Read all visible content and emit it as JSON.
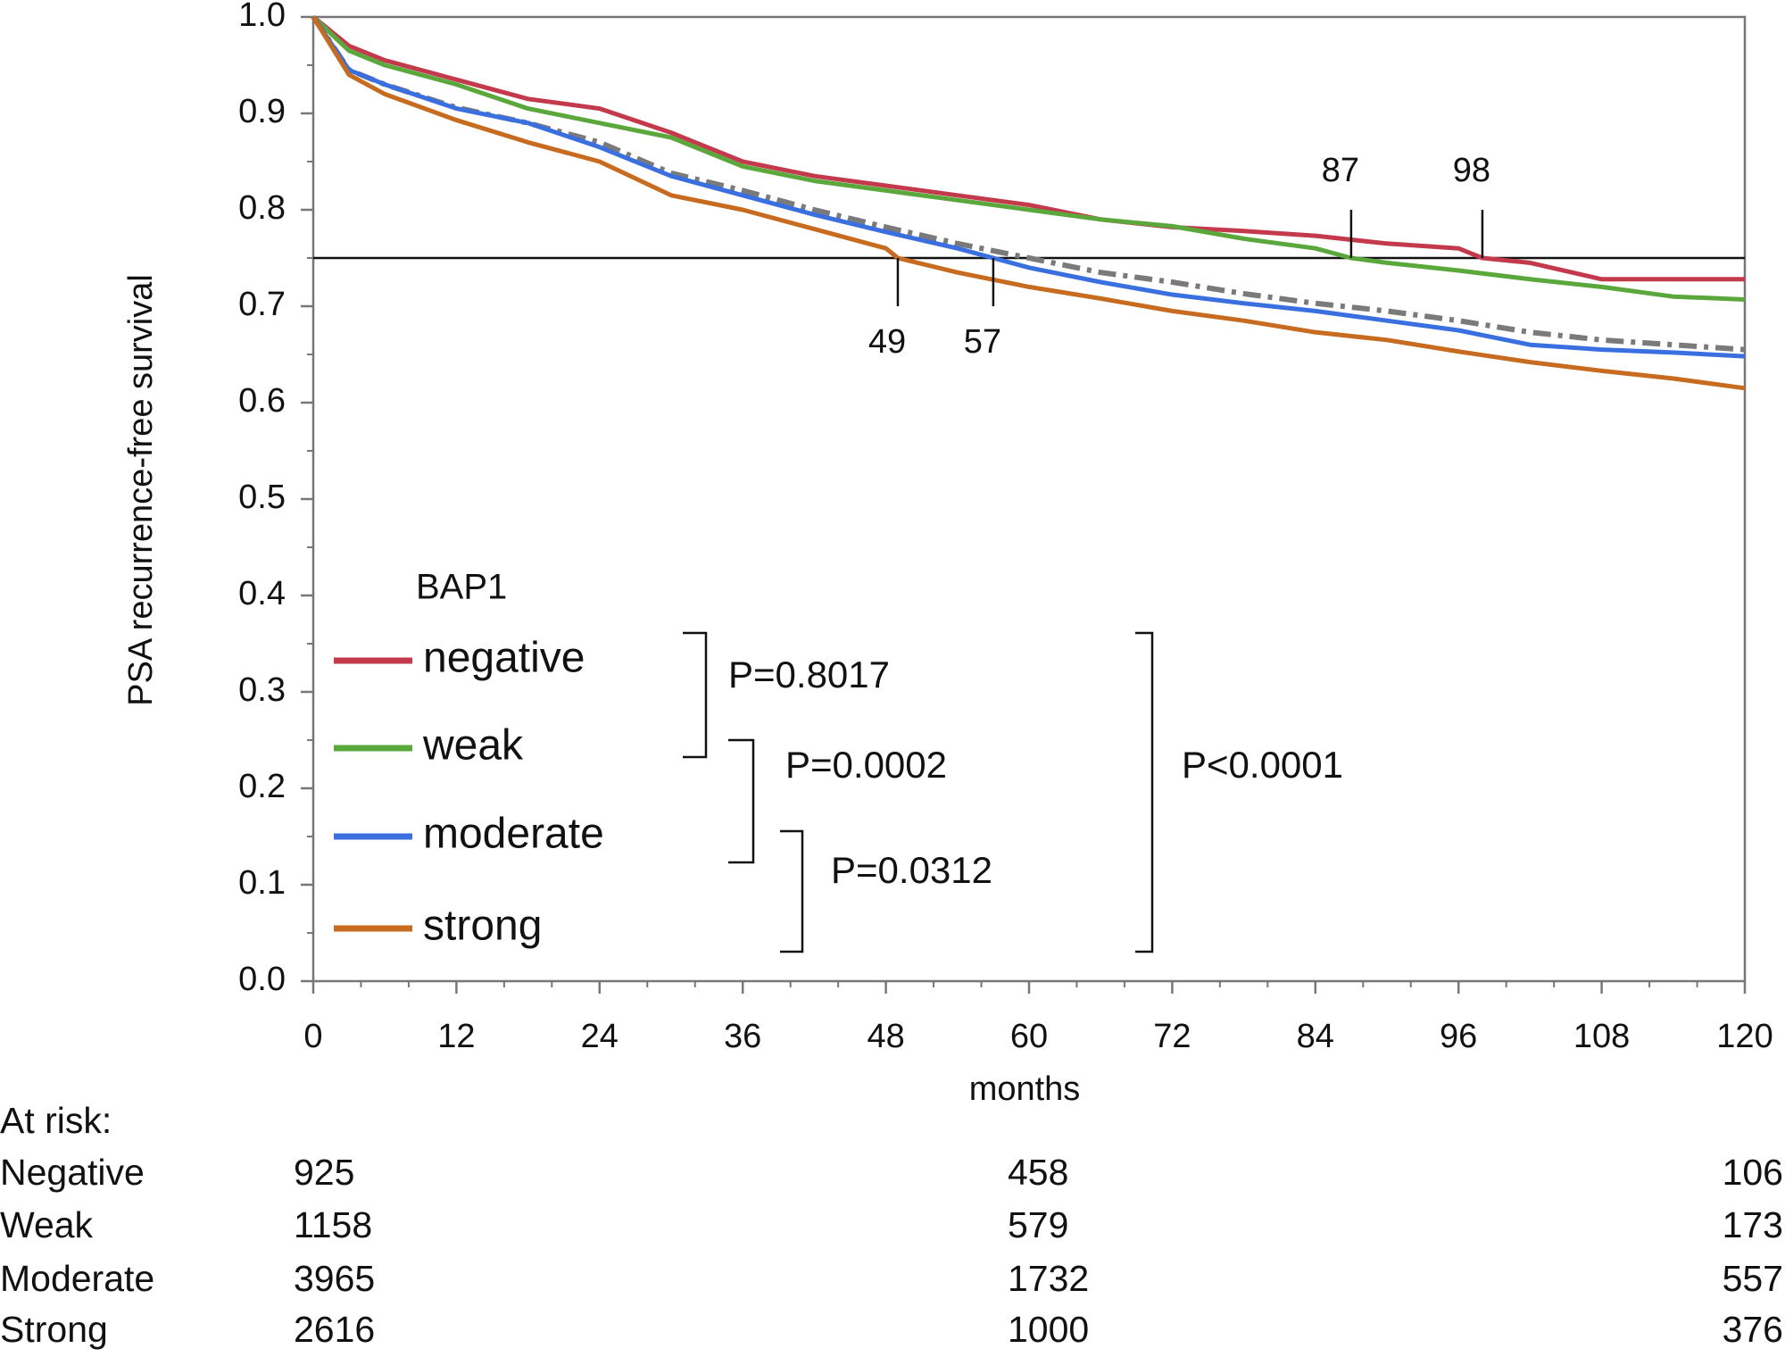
{
  "chart_data": {
    "type": "line",
    "ylabel": "PSA recurrence-free survival",
    "xlabel": "months",
    "xlim": [
      0,
      120
    ],
    "ylim": [
      0,
      1
    ],
    "xticks": [
      0,
      12,
      24,
      36,
      48,
      60,
      72,
      84,
      96,
      108,
      120
    ],
    "xminorticks": [
      4,
      8,
      16,
      20,
      28,
      32,
      40,
      44,
      52,
      56,
      64,
      68,
      76,
      80,
      88,
      92,
      100,
      104,
      112,
      116
    ],
    "yticks": [
      {
        "value": 0,
        "label": "0.0"
      },
      0.1,
      0.2,
      0.3,
      0.4,
      0.5,
      0.6,
      0.7,
      0.8,
      0.9,
      {
        "value": 1,
        "label": "1.0"
      }
    ],
    "yminorticks": [
      0.05,
      0.15,
      0.25,
      0.35,
      0.45,
      0.55,
      0.65,
      0.75,
      0.85,
      0.95
    ],
    "reference_line": 0.75,
    "medians": [
      49,
      57,
      87,
      98
    ],
    "legend_title": "BAP1",
    "series": [
      {
        "name": "negative",
        "color": "#c23a4c",
        "x": [
          0,
          3,
          6,
          12,
          18,
          24,
          30,
          36,
          42,
          48,
          54,
          60,
          66,
          72,
          78,
          84,
          90,
          96,
          98,
          102,
          108,
          114,
          120
        ],
        "values": [
          1.0,
          0.97,
          0.955,
          0.935,
          0.915,
          0.905,
          0.88,
          0.85,
          0.835,
          0.825,
          0.815,
          0.805,
          0.79,
          0.782,
          0.778,
          0.773,
          0.765,
          0.76,
          0.75,
          0.745,
          0.728,
          0.728,
          0.728
        ]
      },
      {
        "name": "weak",
        "color": "#5aa83c",
        "x": [
          0,
          3,
          6,
          12,
          18,
          24,
          30,
          36,
          42,
          48,
          54,
          60,
          66,
          72,
          78,
          84,
          87,
          90,
          96,
          102,
          108,
          114,
          120
        ],
        "values": [
          1.0,
          0.965,
          0.95,
          0.93,
          0.905,
          0.89,
          0.875,
          0.845,
          0.83,
          0.82,
          0.81,
          0.8,
          0.79,
          0.783,
          0.77,
          0.76,
          0.75,
          0.745,
          0.737,
          0.728,
          0.72,
          0.71,
          0.707
        ]
      },
      {
        "color": "#7a7a7a",
        "dash": true,
        "x": [
          0,
          3,
          6,
          12,
          18,
          24,
          30,
          36,
          42,
          48,
          54,
          60,
          66,
          72,
          78,
          84,
          90,
          96,
          102,
          108,
          114,
          120
        ],
        "values": [
          1.0,
          0.945,
          0.93,
          0.906,
          0.89,
          0.87,
          0.838,
          0.82,
          0.8,
          0.782,
          0.765,
          0.75,
          0.735,
          0.725,
          0.713,
          0.703,
          0.695,
          0.685,
          0.673,
          0.665,
          0.66,
          0.655
        ]
      },
      {
        "name": "moderate",
        "color": "#3a6fe0",
        "x": [
          0,
          3,
          6,
          12,
          18,
          24,
          30,
          36,
          42,
          48,
          54,
          57,
          60,
          66,
          72,
          78,
          84,
          90,
          96,
          102,
          108,
          114,
          120
        ],
        "values": [
          1.0,
          0.945,
          0.93,
          0.905,
          0.89,
          0.865,
          0.835,
          0.815,
          0.795,
          0.777,
          0.76,
          0.75,
          0.74,
          0.725,
          0.712,
          0.703,
          0.695,
          0.685,
          0.675,
          0.66,
          0.655,
          0.652,
          0.648
        ]
      },
      {
        "name": "strong",
        "color": "#c66b1f",
        "x": [
          0,
          3,
          6,
          12,
          18,
          24,
          30,
          36,
          42,
          48,
          49,
          54,
          60,
          66,
          72,
          78,
          84,
          90,
          96,
          102,
          108,
          114,
          120
        ],
        "values": [
          1.0,
          0.94,
          0.92,
          0.893,
          0.87,
          0.85,
          0.815,
          0.8,
          0.78,
          0.76,
          0.75,
          0.735,
          0.72,
          0.708,
          0.695,
          0.685,
          0.673,
          0.665,
          0.653,
          0.642,
          0.633,
          0.625,
          0.615
        ]
      }
    ],
    "p_values": [
      "P=0.8017",
      "P=0.0002",
      "P=0.0312",
      "P<0.0001"
    ],
    "at_risk": {
      "title": "At risk:",
      "rows": [
        {
          "label": "Negative",
          "counts": [
            925,
            458,
            106
          ]
        },
        {
          "label": "Weak",
          "counts": [
            1158,
            579,
            173
          ]
        },
        {
          "label": "Moderate",
          "counts": [
            3965,
            1732,
            557
          ]
        },
        {
          "label": "Strong",
          "counts": [
            2616,
            1000,
            376
          ]
        }
      ]
    }
  }
}
